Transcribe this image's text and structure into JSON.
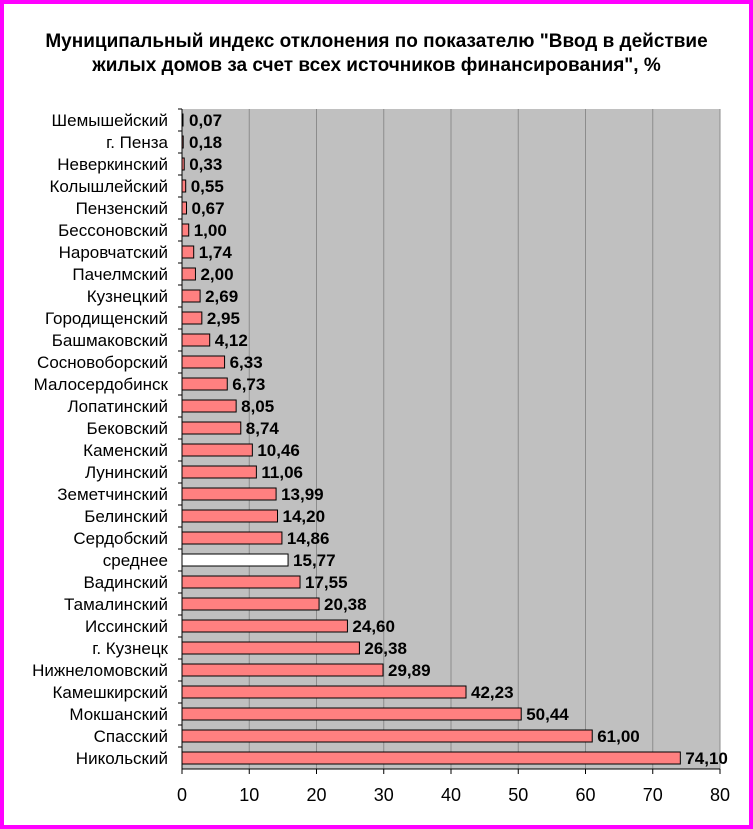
{
  "chart_data": {
    "type": "bar",
    "orientation": "horizontal",
    "title": "Муниципальный индекс отклонения по показателю \"Ввод в действие жилых домов за счет всех источников финансирования\", %",
    "xlabel": "",
    "ylabel": "",
    "xlim": [
      0,
      80
    ],
    "xticks": [
      "0",
      "10",
      "20",
      "30",
      "40",
      "50",
      "60",
      "70",
      "80"
    ],
    "grid": "vertical",
    "legend": "none",
    "categories": [
      "Шемышейский",
      "г. Пенза",
      "Неверкинский",
      "Колышлейский",
      "Пензенский",
      "Бессоновский",
      "Наровчатский",
      "Пачелмский",
      "Кузнецкий",
      "Городищенский",
      "Башмаковский",
      "Сосновоборский",
      "Малосердобинск",
      "Лопатинский",
      "Бековский",
      "Каменский",
      "Лунинский",
      "Земетчинский",
      "Белинский",
      "Сердобский",
      "среднее",
      "Вадинский",
      "Тамалинский",
      "Иссинский",
      "г. Кузнецк",
      "Нижнеломовский",
      "Камешкирский",
      "Мокшанский",
      "Спасский",
      "Никольский"
    ],
    "values": [
      0.07,
      0.18,
      0.33,
      0.55,
      0.67,
      1.0,
      1.74,
      2.0,
      2.69,
      2.95,
      4.12,
      6.33,
      6.73,
      8.05,
      8.74,
      10.46,
      11.06,
      13.99,
      14.2,
      14.86,
      15.77,
      17.55,
      20.38,
      24.6,
      26.38,
      29.89,
      42.23,
      50.44,
      61.0,
      74.1
    ],
    "data_labels": [
      "0,07",
      "0,18",
      "0,33",
      "0,55",
      "0,67",
      "1,00",
      "1,74",
      "2,00",
      "2,69",
      "2,95",
      "4,12",
      "6,33",
      "6,73",
      "8,05",
      "8,74",
      "10,46",
      "11,06",
      "13,99",
      "14,20",
      "14,86",
      "15,77",
      "17,55",
      "20,38",
      "24,60",
      "26,38",
      "29,89",
      "42,23",
      "50,44",
      "61,00",
      "74,10"
    ],
    "highlight_category": "среднее",
    "colors": {
      "bar": "#ff8080",
      "highlight_bar": "#ffffff",
      "bar_border": "#000000",
      "plot_background": "#c0c0c0",
      "gridline": "#8c8c8c",
      "frame_border": "#ff00ff"
    }
  }
}
